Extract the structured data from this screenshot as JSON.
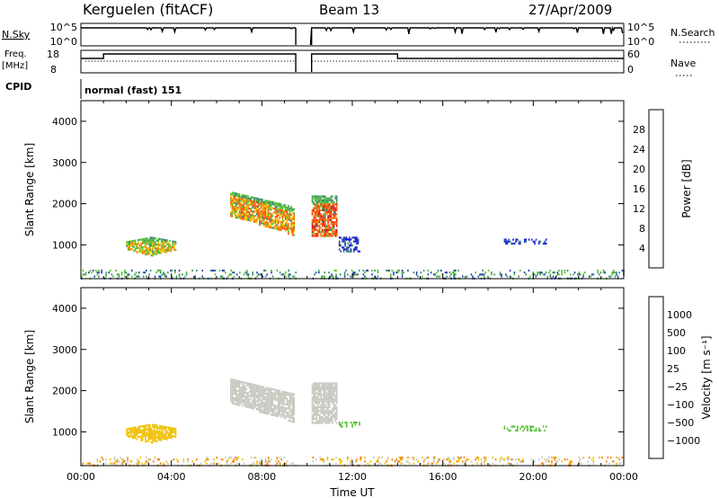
{
  "header": {
    "site": "Kerguelen (fitACF)",
    "beam": "Beam 13",
    "date": "27/Apr/2009"
  },
  "top_panels": {
    "nsky_label": "N.Sky",
    "nsky_ticks": [
      "10^5",
      "10^0"
    ],
    "nsearch_label": "N.Search",
    "nsearch_ticks": [
      "10^5",
      "10^0"
    ],
    "freq_label": "Freq.",
    "freq_unit": "[MHz]",
    "freq_ticks": [
      "18",
      "8"
    ],
    "nave_label": "Nave",
    "nave_ticks": [
      "60",
      "0"
    ],
    "cpid_label": "CPID",
    "cpid_text": "normal (fast) 151",
    "data_gap_hours": [
      9.5,
      10.2
    ]
  },
  "chart_data": [
    {
      "type": "heatmap",
      "panel": "power",
      "ylabel": "Slant Range [km]",
      "xlabel": "",
      "xlim": [
        0,
        24
      ],
      "ylim": [
        180,
        4500
      ],
      "yticks": [
        1000,
        2000,
        3000,
        4000
      ],
      "colorbar": {
        "label": "Power [dB]",
        "ticks": [
          "4",
          "8",
          "12",
          "16",
          "20",
          "24",
          "28"
        ],
        "colors": [
          "#1010e0",
          "#2040b0",
          "#3c8c6c",
          "#50c030",
          "#f0c800",
          "#f08000",
          "#ff5000",
          "#e01010"
        ],
        "range": [
          0,
          32
        ]
      },
      "regions": [
        {
          "x": [
            2.0,
            4.2
          ],
          "y": [
            750,
            1200
          ],
          "level": 4,
          "core_level": 3
        },
        {
          "x": [
            6.6,
            9.4
          ],
          "y": [
            1250,
            2300
          ],
          "level": 5,
          "core_level": 3
        },
        {
          "x": [
            10.2,
            11.3
          ],
          "y": [
            1200,
            2200
          ],
          "level": 6,
          "core_level": 3
        },
        {
          "x": [
            11.4,
            12.3
          ],
          "y": [
            850,
            1200
          ],
          "level": 1,
          "core_level": 1
        },
        {
          "x": [
            18.7,
            20.6
          ],
          "y": [
            1050,
            1150
          ],
          "level": 1,
          "core_level": 1
        },
        {
          "x": [
            0.0,
            24.0
          ],
          "y": [
            180,
            400
          ],
          "level": 2,
          "core_level": 1
        }
      ]
    },
    {
      "type": "heatmap",
      "panel": "velocity",
      "ylabel": "Slant Range [km]",
      "xlabel": "Time UT",
      "xlim": [
        0,
        24
      ],
      "ylim": [
        180,
        4500
      ],
      "yticks": [
        1000,
        2000,
        3000,
        4000
      ],
      "xtick_labels": [
        "00:00",
        "04:00",
        "08:00",
        "12:00",
        "16:00",
        "20:00",
        "00:00"
      ],
      "colorbar": {
        "label": "Velocity [m s⁻¹]",
        "ticks": [
          "1000",
          "500",
          "100",
          "25",
          "−25",
          "−100",
          "−500",
          "−1000"
        ],
        "colors": [
          "#2020c0",
          "#3c60b0",
          "#2e8060",
          "#50c030",
          "#c8c8c0",
          "#f0c000",
          "#f08000",
          "#e04000",
          "#e01010"
        ]
      },
      "regions": [
        {
          "x": [
            2.0,
            4.2
          ],
          "y": [
            750,
            1200
          ],
          "level": 5
        },
        {
          "x": [
            6.6,
            9.4
          ],
          "y": [
            1250,
            2300
          ],
          "level": 4
        },
        {
          "x": [
            10.2,
            11.3
          ],
          "y": [
            1200,
            2200
          ],
          "level": 4
        },
        {
          "x": [
            11.4,
            12.3
          ],
          "y": [
            1150,
            1250
          ],
          "level": 3
        },
        {
          "x": [
            18.7,
            20.6
          ],
          "y": [
            1050,
            1150
          ],
          "level": 3
        },
        {
          "x": [
            0.0,
            24.0
          ],
          "y": [
            180,
            400
          ],
          "level": 5
        }
      ]
    }
  ]
}
